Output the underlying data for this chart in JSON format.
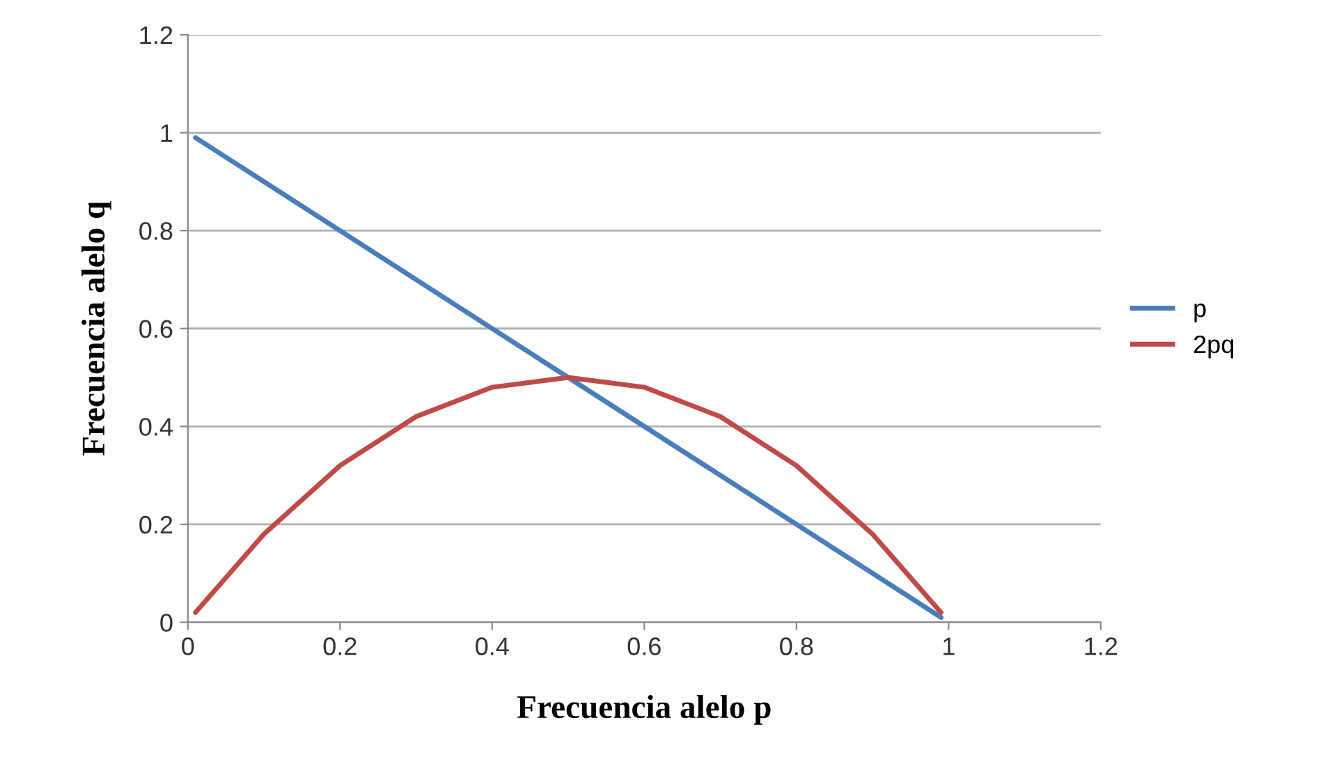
{
  "chart_data": {
    "type": "line",
    "xlabel": "Frecuencia alelo p",
    "ylabel": "Frecuencia alelo q",
    "series": [
      {
        "name": "p",
        "color": "#4a7ebb",
        "x": [
          0.01,
          0.99
        ],
        "values": [
          0.99,
          0.01
        ]
      },
      {
        "name": "2pq",
        "color": "#be4b48",
        "x": [
          0.01,
          0.1,
          0.2,
          0.3,
          0.4,
          0.5,
          0.6,
          0.7,
          0.8,
          0.9,
          0.99
        ],
        "values": [
          0.02,
          0.18,
          0.32,
          0.42,
          0.48,
          0.5,
          0.48,
          0.42,
          0.32,
          0.18,
          0.02
        ]
      }
    ],
    "xlim": [
      0,
      1.2
    ],
    "xticks": [
      0,
      0.2,
      0.4,
      0.6,
      0.8,
      1,
      1.2
    ],
    "ylim": [
      0,
      1.2
    ],
    "yticks": [
      0,
      0.2,
      0.4,
      0.6,
      0.8,
      1,
      1.2
    ],
    "grid": "y",
    "legend": "right",
    "marker": "none",
    "line_style": "solid"
  }
}
